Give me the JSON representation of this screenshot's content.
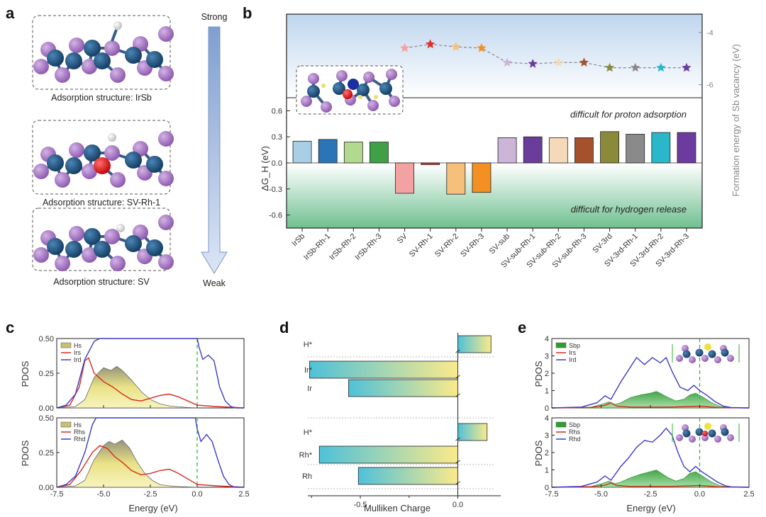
{
  "panel_labels": {
    "a": "a",
    "b": "b",
    "c": "c",
    "d": "d",
    "e": "e"
  },
  "panel_a": {
    "captions": [
      "Adsorption structure: IrSb",
      "Adsorption structure: SV-Rh-1",
      "Adsorption structure: SV"
    ],
    "arrow_top": "Strong",
    "arrow_bottom": "Weak"
  },
  "colors": {
    "purple_atom": "#9b6ab8",
    "blue_atom": "#1f4e7a",
    "red_atom": "#e02020",
    "h_atom": "#eeeeee",
    "arrow": "#9fb4da"
  },
  "chart_data": [
    {
      "panel": "b",
      "type": "bar",
      "categories": [
        "IrSb",
        "IrSb-Rh-1",
        "IrSb-Rh-2",
        "IrSb-Rh-3",
        "SV",
        "SV-Rh-1",
        "SV-Rh-2",
        "SV-Rh-3",
        "SV-sub",
        "SV-sub-Rh-1",
        "SV-sub-Rh-2",
        "SV-sub-Rh-3",
        "SV-3rd",
        "SV-3rd-Rh-1",
        "SV-3rd-Rh-2",
        "SV-3rd-Rh-3"
      ],
      "values": [
        0.25,
        0.27,
        0.24,
        0.24,
        -0.35,
        -0.02,
        -0.36,
        -0.34,
        0.29,
        0.3,
        0.29,
        0.29,
        0.36,
        0.33,
        0.35,
        0.35
      ],
      "bar_colors": [
        "#a9cfe6",
        "#2a74b8",
        "#b3d98f",
        "#3fa046",
        "#f4a1a1",
        "#e32b27",
        "#f7c07a",
        "#f39021",
        "#ccb6d8",
        "#6a3d9a",
        "#f5d9b8",
        "#a5512b",
        "#8a8a3a",
        "#8a8a8a",
        "#2ab7c9",
        "#6d3aa0"
      ],
      "ylabel": "ΔG_H (eV)",
      "ylim": [
        -0.75,
        0.75
      ],
      "yticks": [
        "0.6",
        "0.3",
        "0.0",
        "-0.3",
        "-0.6"
      ],
      "top_annotation": "difficult for proton adsorption",
      "bottom_annotation": "difficult for hydrogen release",
      "secondary": {
        "type": "line",
        "ylabel": "Formation energy of Sb vacancy (eV)",
        "yticks": [
          "-4",
          "-6"
        ],
        "points_x": [
          "SV",
          "SV-Rh-1",
          "SV-Rh-2",
          "SV-Rh-3",
          "SV-sub",
          "SV-sub-Rh-1",
          "SV-sub-Rh-2",
          "SV-sub-Rh-3",
          "SV-3rd",
          "SV-3rd-Rh-1",
          "SV-3rd-Rh-2",
          "SV-3rd-Rh-3"
        ],
        "values": [
          -4.6,
          -4.45,
          -4.55,
          -4.6,
          -5.15,
          -5.2,
          -5.15,
          -5.15,
          -5.35,
          -5.35,
          -5.35,
          -5.35
        ],
        "ylim": [
          -6.5,
          -3.3
        ]
      }
    },
    {
      "panel": "c-top",
      "type": "area",
      "xlabel": "Energy (eV)",
      "ylabel": "PDOS",
      "xlim": [
        -7.5,
        2.5
      ],
      "ylim": [
        0,
        0.5
      ],
      "xticks": [
        "-7.5",
        "-5.0",
        "-2.5",
        "0.0",
        "2.5"
      ],
      "yticks": [
        "0.00",
        "0.25",
        "0.50"
      ],
      "legend": [
        "Hs",
        "Irs",
        "Ird"
      ],
      "series": [
        {
          "name": "Hs",
          "color": "#e8e07a",
          "x": [
            -7.5,
            -6.5,
            -6.0,
            -5.5,
            -5.0,
            -4.6,
            -4.3,
            -4.0,
            -3.5,
            -3.0,
            -2.5,
            -2.0,
            -1.5,
            -1.0,
            -0.5,
            0.0
          ],
          "values": [
            0,
            0.01,
            0.06,
            0.22,
            0.29,
            0.27,
            0.3,
            0.27,
            0.2,
            0.12,
            0.06,
            0.03,
            0.015,
            0.008,
            0.003,
            0
          ]
        },
        {
          "name": "Irs",
          "color": "#d62a1e",
          "x": [
            -7.5,
            -6.8,
            -6.3,
            -6.0,
            -5.8,
            -5.5,
            -5.0,
            -4.5,
            -4.0,
            -3.5,
            -3.0,
            -2.5,
            -2.0,
            -1.5,
            -1.0,
            -0.5,
            0.0,
            1.0,
            2.5
          ],
          "values": [
            0,
            0.02,
            0.15,
            0.34,
            0.36,
            0.25,
            0.19,
            0.15,
            0.1,
            0.06,
            0.05,
            0.07,
            0.09,
            0.1,
            0.08,
            0.05,
            0.02,
            0.01,
            0
          ]
        },
        {
          "name": "Ird",
          "color": "#3a3ac8",
          "x": [
            -7.5,
            -7.0,
            -6.5,
            -6.0,
            -5.5,
            -5.2,
            0.0,
            0.1,
            0.3,
            0.6,
            0.9,
            1.2,
            1.5,
            1.8,
            2.1,
            2.5
          ],
          "values": [
            0,
            0.02,
            0.1,
            0.35,
            0.48,
            0.5,
            0.5,
            0.44,
            0.35,
            0.38,
            0.34,
            0.15,
            0.05,
            0.01,
            0,
            0
          ]
        }
      ]
    },
    {
      "panel": "c-bottom",
      "type": "area",
      "xlabel": "Energy (eV)",
      "ylabel": "PDOS",
      "xlim": [
        -7.5,
        2.5
      ],
      "ylim": [
        0,
        0.5
      ],
      "xticks": [
        "-7.5",
        "-5.0",
        "-2.5",
        "0.0",
        "2.5"
      ],
      "yticks": [
        "0.00",
        "0.25",
        "0.50"
      ],
      "legend": [
        "Hs",
        "Rhs",
        "Rhd"
      ],
      "series": [
        {
          "name": "Hs",
          "color": "#e8e07a",
          "x": [
            -7.5,
            -6.5,
            -6.0,
            -5.5,
            -5.0,
            -4.7,
            -4.4,
            -4.0,
            -3.6,
            -3.2,
            -2.8,
            -2.4,
            -2.0,
            -1.5,
            -1.0,
            0.0
          ],
          "values": [
            0,
            0.01,
            0.05,
            0.2,
            0.3,
            0.33,
            0.31,
            0.34,
            0.28,
            0.18,
            0.1,
            0.05,
            0.02,
            0.01,
            0.005,
            0
          ]
        },
        {
          "name": "Rhs",
          "color": "#d62a1e",
          "x": [
            -7.5,
            -6.8,
            -6.2,
            -5.6,
            -5.2,
            -4.8,
            -4.4,
            -4.0,
            -3.5,
            -3.0,
            -2.5,
            -2.0,
            -1.5,
            -1.0,
            -0.5,
            0.0,
            1.0,
            2.5
          ],
          "values": [
            0,
            0.02,
            0.12,
            0.25,
            0.3,
            0.28,
            0.22,
            0.18,
            0.12,
            0.09,
            0.1,
            0.12,
            0.13,
            0.1,
            0.06,
            0.02,
            0.01,
            0
          ]
        },
        {
          "name": "Rhd",
          "color": "#3a3ac8",
          "x": [
            -7.5,
            -7.0,
            -6.5,
            -6.0,
            -5.6,
            -5.4,
            -0.1,
            0.0,
            0.2,
            0.5,
            0.8,
            1.1,
            1.4,
            1.7,
            2.0,
            2.5
          ],
          "values": [
            0,
            0.02,
            0.08,
            0.25,
            0.45,
            0.5,
            0.5,
            0.42,
            0.33,
            0.38,
            0.33,
            0.2,
            0.08,
            0.02,
            0,
            0
          ]
        }
      ]
    },
    {
      "panel": "d",
      "type": "bar",
      "orientation": "horizontal",
      "xlabel": "Mulliken Charge",
      "xticks": [
        "-0.5",
        "0.0"
      ],
      "xlim": [
        -0.82,
        0.22
      ],
      "categories": [
        "H*",
        "Ir*",
        "Ir",
        "H*",
        "Rh*",
        "Rh"
      ],
      "values": [
        0.17,
        -0.76,
        -0.56,
        0.15,
        -0.71,
        -0.51
      ]
    },
    {
      "panel": "e-top",
      "type": "area",
      "xlabel": "Energy (eV)",
      "ylabel": "PDOS",
      "xlim": [
        -7.5,
        2.5
      ],
      "ylim": [
        0,
        4
      ],
      "xticks": [
        "-7.5",
        "-5.0",
        "-2.5",
        "0.0",
        "2.5"
      ],
      "yticks": [
        "0",
        "1",
        "2",
        "3",
        "4"
      ],
      "legend": [
        "Sbp",
        "Irs",
        "Ird"
      ],
      "series": [
        {
          "name": "Sbp",
          "color": "#2ca02c",
          "x": [
            -7.5,
            -5.5,
            -5.0,
            -4.6,
            -4.3,
            -4.0,
            -3.5,
            -3.0,
            -2.5,
            -2.2,
            -2.0,
            -1.6,
            -1.2,
            -0.8,
            -0.5,
            -0.2,
            0.2,
            0.6,
            1.0,
            1.4,
            2.5
          ],
          "values": [
            0,
            0.05,
            0.2,
            0.35,
            0.2,
            0.3,
            0.6,
            0.75,
            0.85,
            0.95,
            0.85,
            0.6,
            0.4,
            0.5,
            0.75,
            0.85,
            0.6,
            0.3,
            0.1,
            0.02,
            0
          ]
        },
        {
          "name": "Irs",
          "color": "#d62a1e",
          "x": [
            -7.5,
            -5.5,
            -4.8,
            -4.5,
            -4.2,
            -3.5,
            -2.5,
            -1.5,
            -0.5,
            0.0,
            1.0,
            2.5
          ],
          "values": [
            0,
            0.03,
            0.15,
            0.3,
            0.1,
            0.05,
            0.05,
            0.05,
            0.08,
            0.1,
            0.02,
            0
          ]
        },
        {
          "name": "Ird",
          "color": "#3a3ac8",
          "x": [
            -7.5,
            -6.0,
            -5.2,
            -4.8,
            -4.5,
            -4.0,
            -3.6,
            -3.2,
            -2.8,
            -2.4,
            -2.0,
            -1.7,
            -1.4,
            -1.0,
            -0.6,
            -0.3,
            0.0,
            0.4,
            0.8,
            1.2,
            1.6,
            2.5
          ],
          "values": [
            0,
            0.05,
            0.3,
            0.7,
            0.5,
            1.5,
            2.2,
            2.9,
            2.5,
            2.9,
            2.6,
            2.9,
            2.1,
            1.2,
            1.0,
            1.3,
            1.0,
            0.7,
            0.35,
            0.1,
            0.02,
            0
          ]
        }
      ]
    },
    {
      "panel": "e-bottom",
      "type": "area",
      "xlabel": "Energy (eV)",
      "ylabel": "PDOS",
      "xlim": [
        -7.5,
        2.5
      ],
      "ylim": [
        0,
        4
      ],
      "xticks": [
        "-7.5",
        "-5.0",
        "-2.5",
        "0.0",
        "2.5"
      ],
      "yticks": [
        "0",
        "1",
        "2",
        "3",
        "4"
      ],
      "legend": [
        "Sbp",
        "Rhs",
        "Rhd"
      ],
      "series": [
        {
          "name": "Sbp",
          "color": "#2ca02c",
          "x": [
            -7.5,
            -5.5,
            -5.0,
            -4.6,
            -4.3,
            -4.0,
            -3.5,
            -3.0,
            -2.5,
            -2.2,
            -2.0,
            -1.6,
            -1.2,
            -0.8,
            -0.5,
            -0.2,
            0.2,
            0.6,
            1.0,
            1.4,
            2.5
          ],
          "values": [
            0,
            0.05,
            0.2,
            0.35,
            0.2,
            0.3,
            0.55,
            0.75,
            0.9,
            1.0,
            0.85,
            0.55,
            0.35,
            0.5,
            0.8,
            0.9,
            0.6,
            0.3,
            0.1,
            0.02,
            0
          ]
        },
        {
          "name": "Rhs",
          "color": "#d62a1e",
          "x": [
            -7.5,
            -5.5,
            -4.8,
            -4.5,
            -4.2,
            -3.5,
            -2.5,
            -1.5,
            -0.5,
            0.0,
            1.0,
            2.5
          ],
          "values": [
            0,
            0.03,
            0.12,
            0.25,
            0.1,
            0.05,
            0.05,
            0.05,
            0.08,
            0.1,
            0.02,
            0
          ]
        },
        {
          "name": "Rhd",
          "color": "#3a3ac8",
          "x": [
            -7.5,
            -6.0,
            -5.2,
            -4.8,
            -4.5,
            -4.0,
            -3.6,
            -3.2,
            -2.8,
            -2.4,
            -2.0,
            -1.7,
            -1.4,
            -1.1,
            -0.8,
            -0.5,
            -0.2,
            0.1,
            0.5,
            0.9,
            1.3,
            1.6,
            2.5
          ],
          "values": [
            0,
            0.05,
            0.3,
            0.65,
            0.4,
            1.2,
            1.7,
            2.3,
            2.7,
            2.6,
            3.0,
            3.4,
            3.0,
            2.0,
            1.2,
            0.9,
            1.2,
            0.9,
            0.6,
            0.3,
            0.08,
            0.02,
            0
          ]
        }
      ]
    }
  ]
}
